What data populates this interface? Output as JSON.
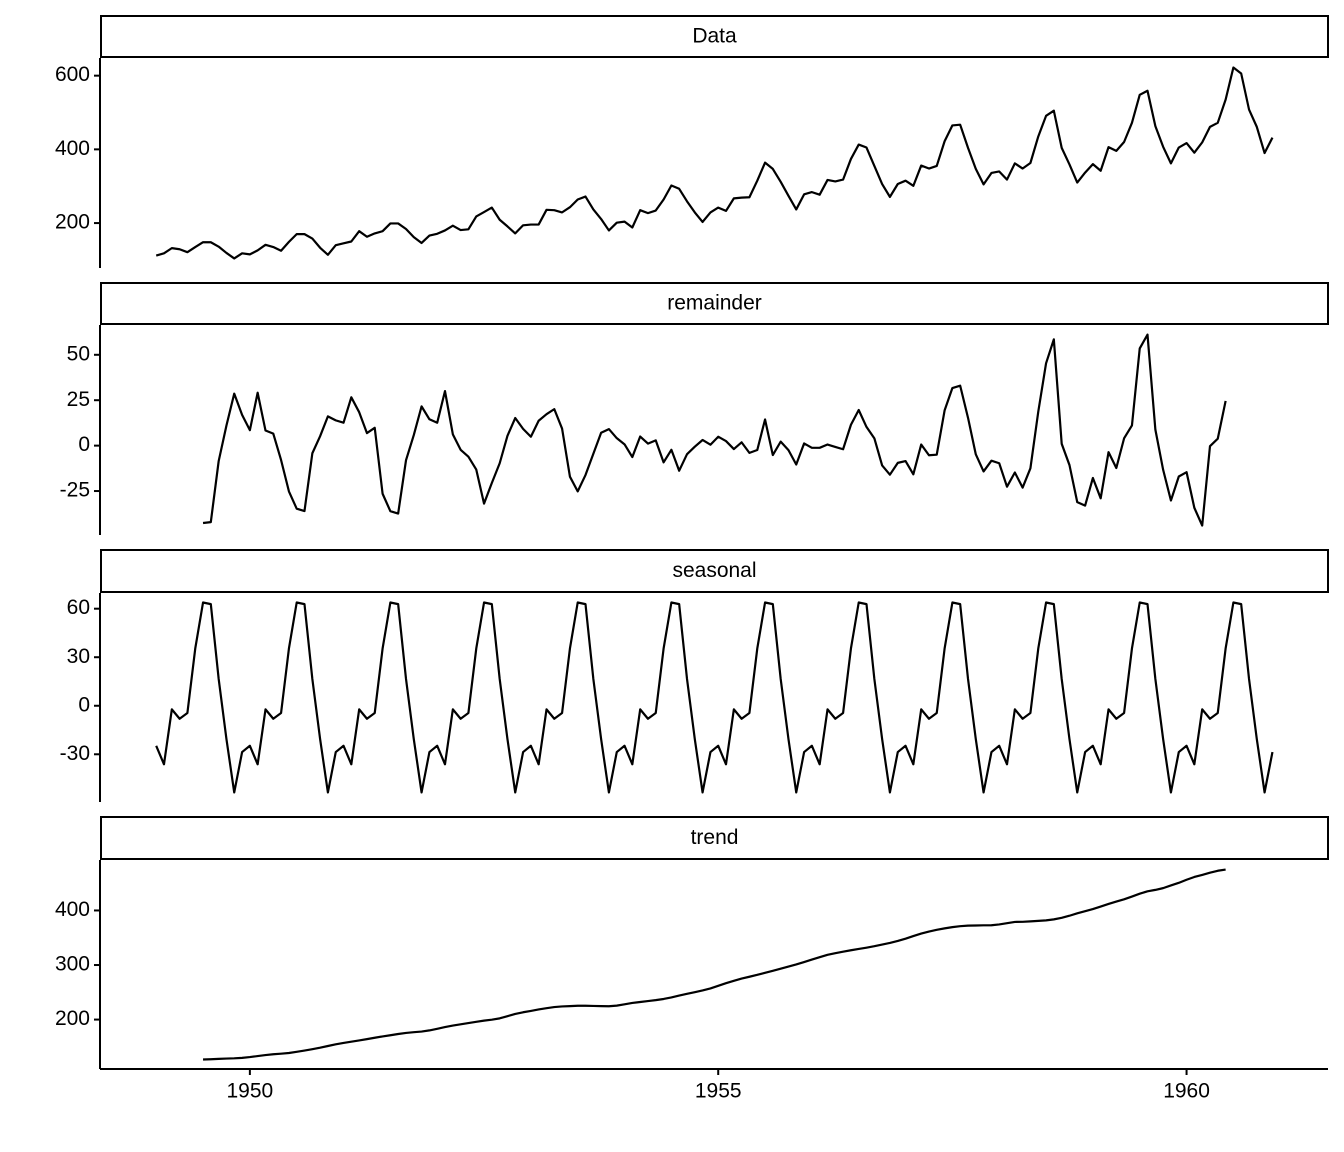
{
  "chart_data": [
    {
      "type": "line",
      "title": "Data",
      "color": "#000000",
      "xlim": [
        1948.4,
        1961.51
      ],
      "ylim": [
        78.1,
        647.9
      ],
      "yticks": [
        200,
        400,
        600
      ],
      "x": [
        1949,
        1949.083,
        1949.167,
        1949.25,
        1949.333,
        1949.417,
        1949.5,
        1949.583,
        1949.667,
        1949.75,
        1949.833,
        1949.917,
        1950,
        1950.083,
        1950.167,
        1950.25,
        1950.333,
        1950.417,
        1950.5,
        1950.583,
        1950.667,
        1950.75,
        1950.833,
        1950.917,
        1951,
        1951.083,
        1951.167,
        1951.25,
        1951.333,
        1951.417,
        1951.5,
        1951.583,
        1951.667,
        1951.75,
        1951.833,
        1951.917,
        1952,
        1952.083,
        1952.167,
        1952.25,
        1952.333,
        1952.417,
        1952.5,
        1952.583,
        1952.667,
        1952.75,
        1952.833,
        1952.917,
        1953,
        1953.083,
        1953.167,
        1953.25,
        1953.333,
        1953.417,
        1953.5,
        1953.583,
        1953.667,
        1953.75,
        1953.833,
        1953.917,
        1954,
        1954.083,
        1954.167,
        1954.25,
        1954.333,
        1954.417,
        1954.5,
        1954.583,
        1954.667,
        1954.75,
        1954.833,
        1954.917,
        1955,
        1955.083,
        1955.167,
        1955.25,
        1955.333,
        1955.417,
        1955.5,
        1955.583,
        1955.667,
        1955.75,
        1955.833,
        1955.917,
        1956,
        1956.083,
        1956.167,
        1956.25,
        1956.333,
        1956.417,
        1956.5,
        1956.583,
        1956.667,
        1956.75,
        1956.833,
        1956.917,
        1957,
        1957.083,
        1957.167,
        1957.25,
        1957.333,
        1957.417,
        1957.5,
        1957.583,
        1957.667,
        1957.75,
        1957.833,
        1957.917,
        1958,
        1958.083,
        1958.167,
        1958.25,
        1958.333,
        1958.417,
        1958.5,
        1958.583,
        1958.667,
        1958.75,
        1958.833,
        1958.917,
        1959,
        1959.083,
        1959.167,
        1959.25,
        1959.333,
        1959.417,
        1959.5,
        1959.583,
        1959.667,
        1959.75,
        1959.833,
        1959.917,
        1960,
        1960.083,
        1960.167,
        1960.25,
        1960.333,
        1960.417,
        1960.5,
        1960.583,
        1960.667,
        1960.75,
        1960.833,
        1960.917
      ],
      "values": [
        112,
        118,
        132,
        129,
        121,
        135,
        148,
        148,
        136,
        119,
        104,
        118,
        115,
        126,
        141,
        135,
        125,
        149,
        170,
        170,
        158,
        133,
        114,
        140,
        145,
        150,
        178,
        163,
        172,
        178,
        199,
        199,
        184,
        162,
        146,
        166,
        171,
        180,
        193,
        181,
        183,
        218,
        230,
        242,
        209,
        191,
        172,
        194,
        196,
        196,
        236,
        235,
        229,
        243,
        264,
        272,
        237,
        211,
        180,
        201,
        204,
        188,
        235,
        227,
        234,
        264,
        302,
        293,
        259,
        229,
        203,
        229,
        242,
        233,
        267,
        269,
        270,
        315,
        364,
        347,
        312,
        274,
        237,
        278,
        284,
        277,
        317,
        313,
        318,
        374,
        413,
        405,
        355,
        306,
        271,
        306,
        315,
        301,
        356,
        348,
        355,
        422,
        465,
        467,
        404,
        347,
        305,
        336,
        340,
        318,
        362,
        348,
        363,
        435,
        491,
        505,
        404,
        359,
        310,
        337,
        360,
        342,
        406,
        396,
        420,
        472,
        548,
        559,
        463,
        407,
        362,
        405,
        417,
        391,
        419,
        461,
        472,
        535,
        622,
        606,
        508,
        461,
        390,
        432
      ]
    },
    {
      "type": "line",
      "title": "remainder",
      "color": "#000000",
      "xlim": [
        1948.4,
        1961.51
      ],
      "ylim": [
        -49.2,
        66.4
      ],
      "yticks": [
        -25,
        0,
        25,
        50
      ],
      "values": [
        null,
        null,
        null,
        null,
        null,
        null,
        -42.6,
        -42.1,
        -8.5,
        11.1,
        28.6,
        16.9,
        8.5,
        29.1,
        8.3,
        6.6,
        -7.9,
        -25.2,
        -34.7,
        -36.0,
        -4.2,
        5.2,
        16.1,
        13.9,
        12.6,
        26.6,
        18.4,
        6.9,
        9.8,
        -26.5,
        -36.1,
        -37.4,
        -8.0,
        5.8,
        21.6,
        14.5,
        12.6,
        30.0,
        6.2,
        -2.3,
        -6.1,
        -13.2,
        -31.9,
        -20.6,
        -9.7,
        5.4,
        15.2,
        9.2,
        4.9,
        13.7,
        17.3,
        20.1,
        9.4,
        -17.1,
        -25.2,
        -16.2,
        -4.5,
        7.1,
        9.1,
        4.1,
        0.7,
        -6.3,
        5.0,
        1.1,
        2.9,
        -9.2,
        -2.3,
        -13.8,
        -4.7,
        -0.6,
        3.1,
        0.5,
        4.9,
        2.5,
        -1.9,
        1.8,
        -4.0,
        -2.4,
        14.4,
        -5.2,
        2.2,
        -2.5,
        -10.4,
        1.2,
        -1.2,
        -1.2,
        0.6,
        -0.7,
        -2.0,
        11.5,
        19.6,
        10.3,
        4.0,
        -10.9,
        -16.0,
        -9.5,
        -8.5,
        -15.8,
        0.6,
        -5.3,
        -5.0,
        19.4,
        31.7,
        33.0,
        15.3,
        -4.8,
        -14.2,
        -8.3,
        -9.7,
        -22.6,
        -14.8,
        -23.1,
        -12.5,
        18.7,
        45.3,
        58.5,
        1.0,
        -10.7,
        -31.1,
        -33.0,
        -17.8,
        -29.0,
        -3.6,
        -12.3,
        4.0,
        11.1,
        53.5,
        61.1,
        8.8,
        -13.3,
        -30.2,
        -17.0,
        -14.6,
        -34.2,
        -44.0,
        -0.3,
        3.8,
        24.6,
        null,
        null,
        null,
        null,
        null,
        null
      ]
    },
    {
      "type": "line",
      "title": "seasonal",
      "color": "#000000",
      "xlim": [
        1948.4,
        1961.51
      ],
      "ylim": [
        -59.5,
        69.7
      ],
      "yticks": [
        -30,
        0,
        30,
        60
      ],
      "values": [
        -24.75,
        -36.19,
        -2.24,
        -8.04,
        -4.51,
        35.4,
        63.83,
        62.82,
        16.52,
        -20.64,
        -53.59,
        -28.62,
        -24.75,
        -36.19,
        -2.24,
        -8.04,
        -4.51,
        35.4,
        63.83,
        62.82,
        16.52,
        -20.64,
        -53.59,
        -28.62,
        -24.75,
        -36.19,
        -2.24,
        -8.04,
        -4.51,
        35.4,
        63.83,
        62.82,
        16.52,
        -20.64,
        -53.59,
        -28.62,
        -24.75,
        -36.19,
        -2.24,
        -8.04,
        -4.51,
        35.4,
        63.83,
        62.82,
        16.52,
        -20.64,
        -53.59,
        -28.62,
        -24.75,
        -36.19,
        -2.24,
        -8.04,
        -4.51,
        35.4,
        63.83,
        62.82,
        16.52,
        -20.64,
        -53.59,
        -28.62,
        -24.75,
        -36.19,
        -2.24,
        -8.04,
        -4.51,
        35.4,
        63.83,
        62.82,
        16.52,
        -20.64,
        -53.59,
        -28.62,
        -24.75,
        -36.19,
        -2.24,
        -8.04,
        -4.51,
        35.4,
        63.83,
        62.82,
        16.52,
        -20.64,
        -53.59,
        -28.62,
        -24.75,
        -36.19,
        -2.24,
        -8.04,
        -4.51,
        35.4,
        63.83,
        62.82,
        16.52,
        -20.64,
        -53.59,
        -28.62,
        -24.75,
        -36.19,
        -2.24,
        -8.04,
        -4.51,
        35.4,
        63.83,
        62.82,
        16.52,
        -20.64,
        -53.59,
        -28.62,
        -24.75,
        -36.19,
        -2.24,
        -8.04,
        -4.51,
        35.4,
        63.83,
        62.82,
        16.52,
        -20.64,
        -53.59,
        -28.62,
        -24.75,
        -36.19,
        -2.24,
        -8.04,
        -4.51,
        35.4,
        63.83,
        62.82,
        16.52,
        -20.64,
        -53.59,
        -28.62,
        -24.75,
        -36.19,
        -2.24,
        -8.04,
        -4.51,
        35.4,
        63.83,
        62.82,
        16.52,
        -20.64,
        -53.59,
        -28.62
      ]
    },
    {
      "type": "line",
      "title": "trend",
      "color": "#000000",
      "xlim": [
        1948.4,
        1961.51
      ],
      "ylim": [
        109.4,
        492.5
      ],
      "yticks": [
        200,
        300,
        400
      ],
      "xticks": [
        1950,
        1955,
        1960
      ],
      "values": [
        null,
        null,
        null,
        null,
        null,
        null,
        126.79,
        127.25,
        127.96,
        128.58,
        129.0,
        129.75,
        131.25,
        133.08,
        134.92,
        136.42,
        137.42,
        138.75,
        140.92,
        143.17,
        145.71,
        148.42,
        151.54,
        154.71,
        157.13,
        159.54,
        161.83,
        164.13,
        166.67,
        169.08,
        171.25,
        173.58,
        175.46,
        176.83,
        178.04,
        180.17,
        183.13,
        186.21,
        189.04,
        191.29,
        193.58,
        195.83,
        198.04,
        199.75,
        202.21,
        206.25,
        210.42,
        213.38,
        215.83,
        218.5,
        220.92,
        222.92,
        224.08,
        224.71,
        225.33,
        225.33,
        224.96,
        224.58,
        224.46,
        225.54,
        228.0,
        230.46,
        232.25,
        233.92,
        235.63,
        237.75,
        240.5,
        243.96,
        247.17,
        250.25,
        253.5,
        257.13,
        261.83,
        266.67,
        271.13,
        275.21,
        278.5,
        281.96,
        285.75,
        289.33,
        293.25,
        297.17,
        301.0,
        305.46,
        309.96,
        314.42,
        318.63,
        321.75,
        324.5,
        327.08,
        329.54,
        331.83,
        334.46,
        337.54,
        340.54,
        344.08,
        348.25,
        353.0,
        357.63,
        361.38,
        364.5,
        367.17,
        369.46,
        371.21,
        372.17,
        372.42,
        372.75,
        372.92,
        374.42,
        376.75,
        379.0,
        379.17,
        380.0,
        380.92,
        381.88,
        383.67,
        386.5,
        390.33,
        394.71,
        398.63,
        402.54,
        407.17,
        411.88,
        416.33,
        420.5,
        425.5,
        430.71,
        435.13,
        437.71,
        440.96,
        445.83,
        450.63,
        456.33,
        461.38,
        465.21,
        469.33,
        472.75,
        475.04,
        null,
        null,
        null,
        null,
        null,
        null
      ]
    }
  ]
}
